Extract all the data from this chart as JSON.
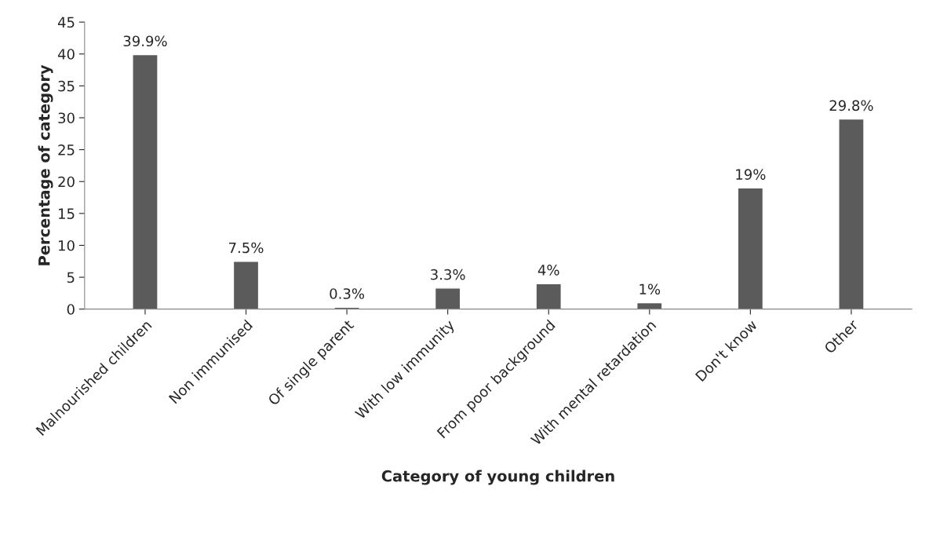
{
  "chart_data": {
    "type": "bar",
    "xlabel": "Category of young children",
    "ylabel": "Percentage of category",
    "categories": [
      "Malnourished children",
      "Non immunised",
      "Of single parent",
      "With low immunity",
      "From poor background",
      "With mental retardation",
      "Don't know",
      "Other"
    ],
    "values": [
      39.9,
      7.5,
      0.3,
      3.3,
      4,
      1,
      19,
      29.8
    ],
    "value_labels": [
      "39.9%",
      "7.5%",
      "0.3%",
      "3.3%",
      "4%",
      "1%",
      "19%",
      "29.8%"
    ],
    "color": "#5b5b5b",
    "ylim": [
      0,
      45
    ],
    "yticks": [
      0,
      5,
      10,
      15,
      20,
      25,
      30,
      35,
      40,
      45
    ],
    "grid": false
  }
}
